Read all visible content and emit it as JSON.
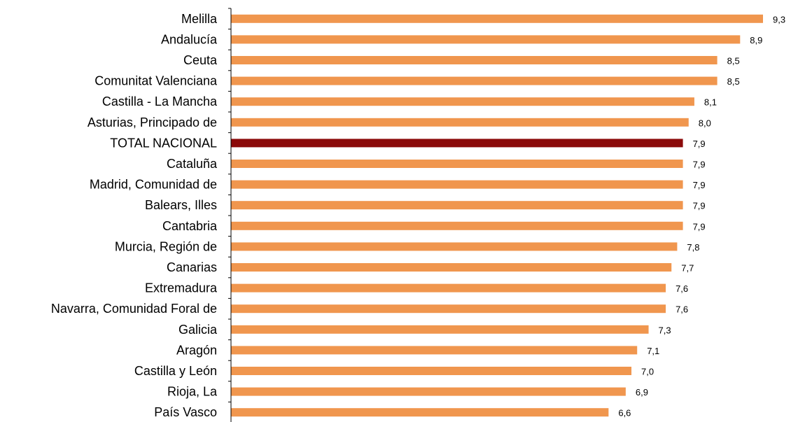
{
  "chart_data": {
    "type": "bar",
    "orientation": "horizontal",
    "title": "",
    "xlabel": "",
    "ylabel": "",
    "xlim": [
      0,
      9.3
    ],
    "grid": false,
    "legend": "none",
    "colors": {
      "default": "#F0964E",
      "highlight": "#8B0A0A"
    },
    "highlight_category": "TOTAL NACIONAL",
    "categories": [
      "Melilla",
      "Andalucía",
      "Ceuta",
      "Comunitat Valenciana",
      "Castilla - La Mancha",
      "Asturias, Principado de",
      "TOTAL NACIONAL",
      "Cataluña",
      "Madrid, Comunidad de",
      "Balears, Illes",
      "Cantabria",
      "Murcia, Región de",
      "Canarias",
      "Extremadura",
      "Navarra, Comunidad Foral de",
      "Galicia",
      "Aragón",
      "Castilla y León",
      "Rioja, La",
      "País Vasco"
    ],
    "values": [
      9.3,
      8.9,
      8.5,
      8.5,
      8.1,
      8.0,
      7.9,
      7.9,
      7.9,
      7.9,
      7.9,
      7.8,
      7.7,
      7.6,
      7.6,
      7.3,
      7.1,
      7.0,
      6.9,
      6.6
    ],
    "value_labels": [
      "9,3",
      "8,9",
      "8,5",
      "8,5",
      "8,1",
      "8,0",
      "7,9",
      "7,9",
      "7,9",
      "7,9",
      "7,9",
      "7,8",
      "7,7",
      "7,6",
      "7,6",
      "7,3",
      "7,1",
      "7,0",
      "6,9",
      "6,6"
    ]
  }
}
